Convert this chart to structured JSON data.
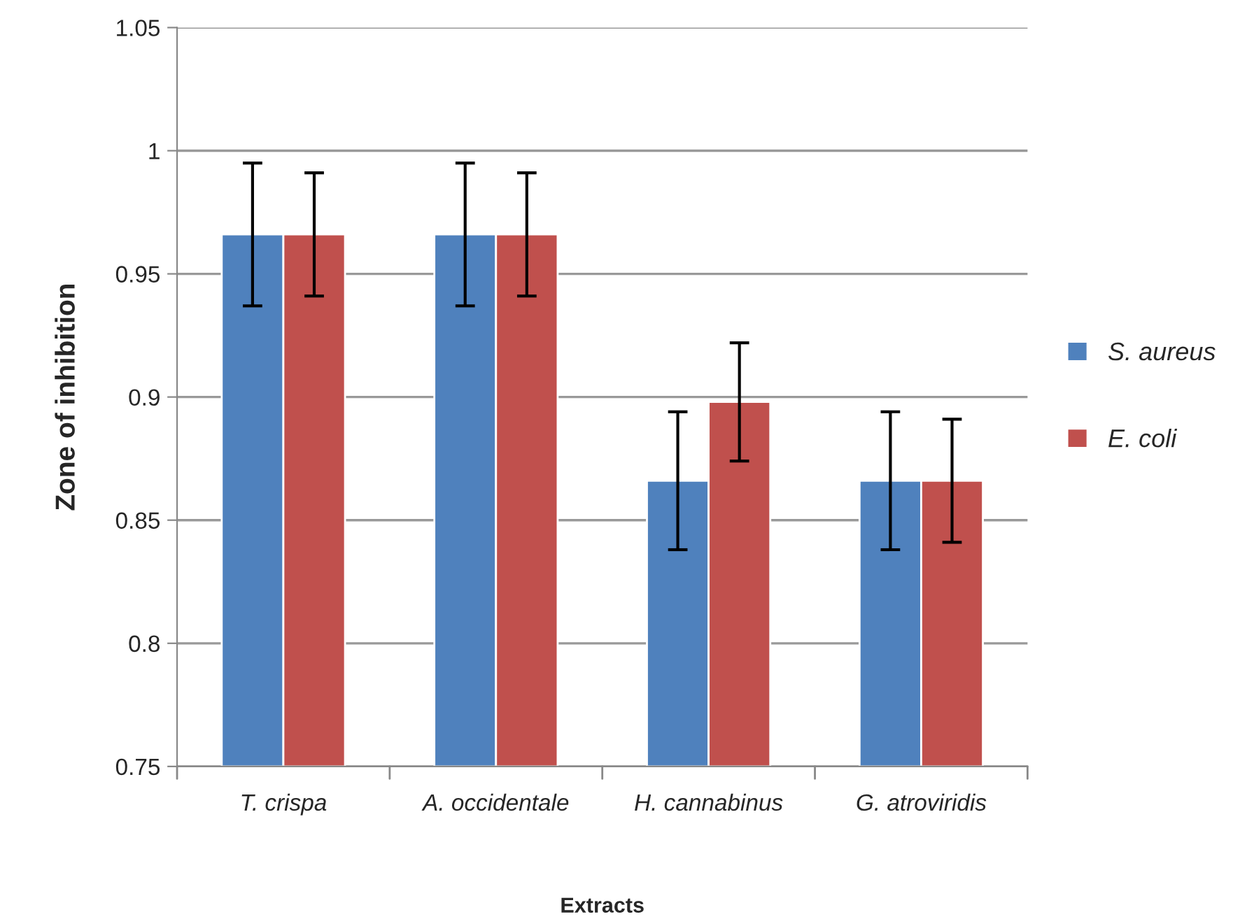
{
  "chart_data": {
    "type": "bar",
    "xlabel": "Extracts",
    "ylabel": "Zone of inhibition",
    "categories": [
      "T. crispa",
      "A. occidentale",
      "H. cannabinus",
      "G. atroviridis"
    ],
    "series": [
      {
        "name": "S. aureus",
        "color": "#4f81bd",
        "values": [
          0.966,
          0.966,
          0.866,
          0.866
        ],
        "errors": [
          0.029,
          0.029,
          0.028,
          0.028
        ]
      },
      {
        "name": "E. coli",
        "color": "#c0504d",
        "values": [
          0.966,
          0.966,
          0.898,
          0.866
        ],
        "errors": [
          0.025,
          0.025,
          0.024,
          0.025
        ]
      }
    ],
    "ylim": [
      0.75,
      1.05
    ],
    "yticks": [
      0.75,
      0.8,
      0.85,
      0.9,
      0.95,
      1,
      1.05
    ],
    "grid": "y",
    "legend": "right"
  }
}
